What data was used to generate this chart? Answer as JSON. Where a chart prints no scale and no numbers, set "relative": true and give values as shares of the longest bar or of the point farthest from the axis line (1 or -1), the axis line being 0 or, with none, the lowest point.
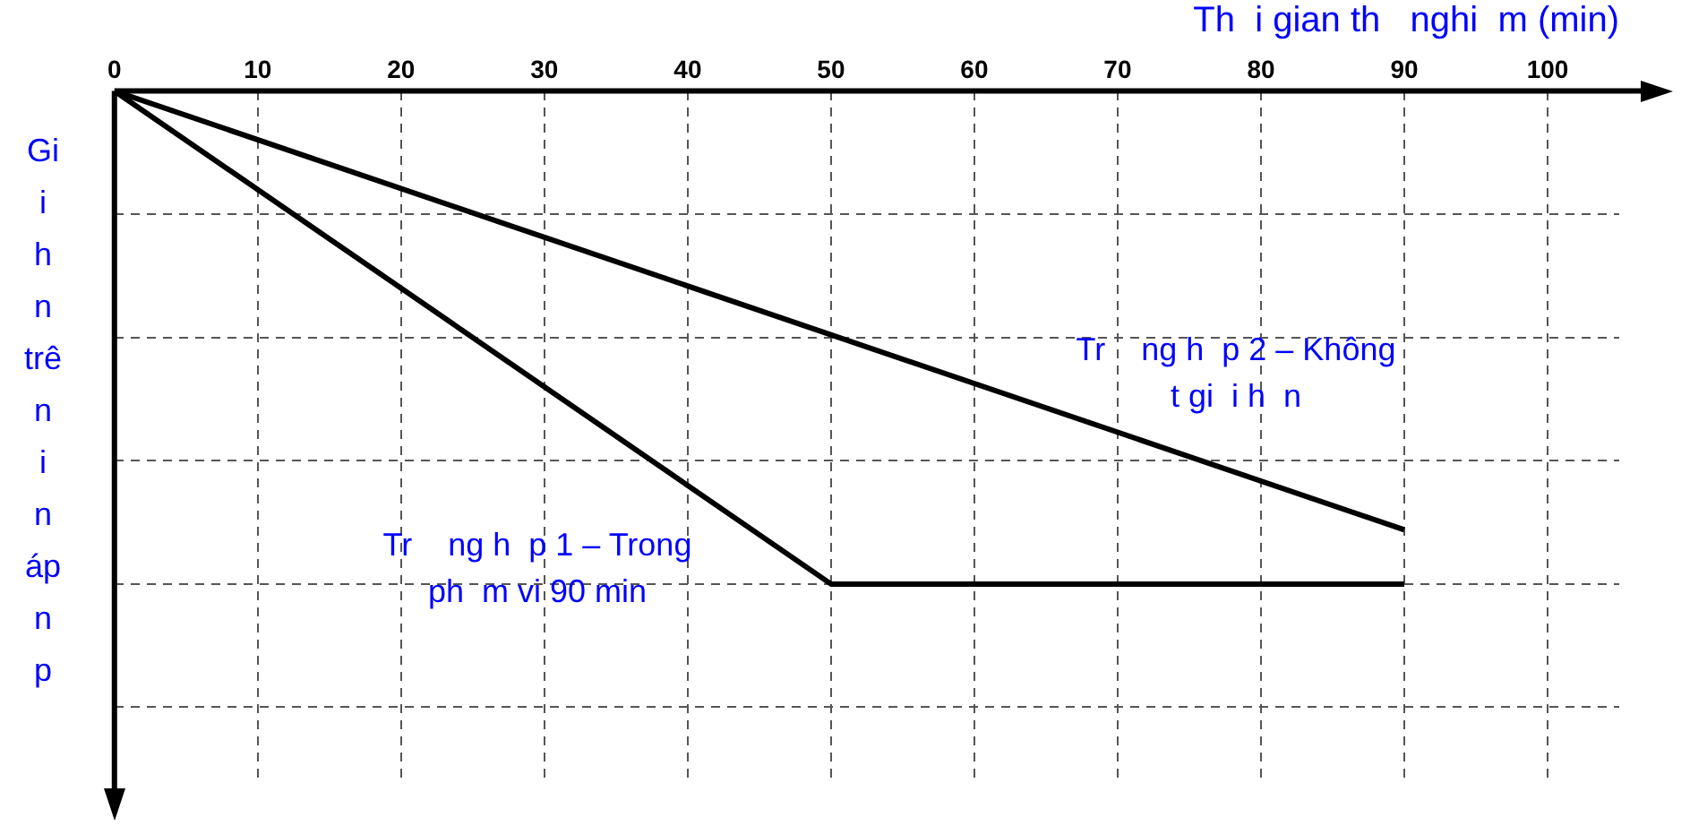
{
  "chart_data": {
    "type": "line",
    "xlabel": "Th  i gian th   nghi  m (min)",
    "ylabel": "Gi i h n trê n i n áp n p",
    "xlim": [
      0,
      105
    ],
    "xticks": [
      0,
      10,
      20,
      30,
      40,
      50,
      60,
      70,
      80,
      90,
      100
    ],
    "relative": true,
    "grid": true,
    "legend": false,
    "marker": "none",
    "line_style": "solid",
    "series": [
      {
        "name": "Tr    ng h  p 1 – Trong ph  m vi 90 min",
        "color": "#000000",
        "x": [
          0,
          50,
          90
        ],
        "values": [
          0,
          -1,
          -1
        ]
      },
      {
        "name": "Tr    ng h  p 2 – Không t gi  i h  n",
        "color": "#000000",
        "x": [
          0,
          90
        ],
        "values": [
          0,
          -0.89
        ]
      }
    ]
  }
}
